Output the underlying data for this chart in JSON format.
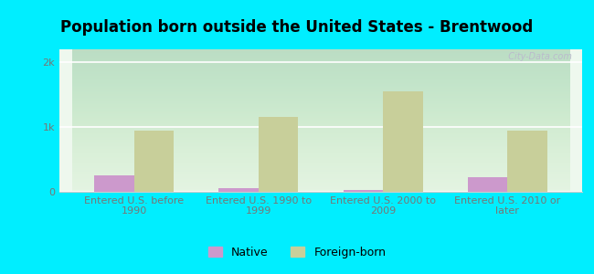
{
  "title": "Population born outside the United States - Brentwood",
  "categories": [
    "Entered U.S. before\n1990",
    "Entered U.S. 1990 to\n1999",
    "Entered U.S. 2000 to\n2009",
    "Entered U.S. 2010 or\nlater"
  ],
  "native_values": [
    250,
    50,
    30,
    230
  ],
  "foreign_values": [
    950,
    1150,
    1550,
    950
  ],
  "native_color": "#cc99cc",
  "foreign_color": "#c8cf9a",
  "background_outer": "#00eeff",
  "yticks": [
    0,
    1000,
    2000
  ],
  "ytick_labels": [
    "0",
    "1k",
    "2k"
  ],
  "ylim": [
    0,
    2200
  ],
  "bar_width": 0.32,
  "title_fontsize": 12,
  "tick_label_fontsize": 8,
  "legend_native": "Native",
  "legend_foreign": "Foreign-born",
  "watermark": "  City-Data.com"
}
